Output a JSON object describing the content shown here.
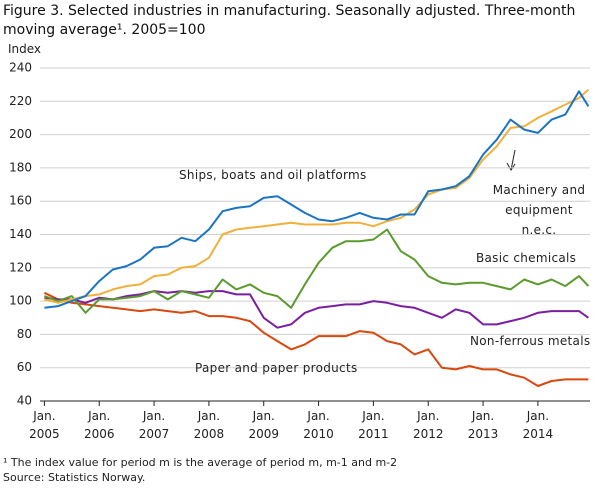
{
  "chart_data": {
    "type": "line",
    "title": "Figure 3. Selected industries in manufacturing. Seasonally adjusted. Three-month moving average¹. 2005=100",
    "y_label": "Index",
    "footnote": "¹ The index value for period m is the average of period m, m-1 and m-2",
    "source": "Source: Statistics Norway.",
    "x": [
      2005,
      2005.25,
      2005.5,
      2005.75,
      2006,
      2006.25,
      2006.5,
      2006.75,
      2007,
      2007.25,
      2007.5,
      2007.75,
      2008,
      2008.25,
      2008.5,
      2008.75,
      2009,
      2009.25,
      2009.5,
      2009.75,
      2010,
      2010.25,
      2010.5,
      2010.75,
      2011,
      2011.25,
      2011.5,
      2011.75,
      2012,
      2012.25,
      2012.5,
      2012.75,
      2013,
      2013.25,
      2013.5,
      2013.75,
      2014,
      2014.25,
      2014.5,
      2014.75,
      2014.92
    ],
    "xlim": [
      2004.92,
      2014.95
    ],
    "xticks": [
      {
        "value": 2005,
        "label": "Jan. 2005"
      },
      {
        "value": 2006,
        "label": "Jan. 2006"
      },
      {
        "value": 2007,
        "label": "Jan. 2007"
      },
      {
        "value": 2008,
        "label": "Jan. 2008"
      },
      {
        "value": 2009,
        "label": "Jan. 2009"
      },
      {
        "value": 2010,
        "label": "Jan. 2010"
      },
      {
        "value": 2011,
        "label": "Jan. 2011"
      },
      {
        "value": 2012,
        "label": "Jan. 2012"
      },
      {
        "value": 2013,
        "label": "Jan. 2013"
      },
      {
        "value": 2014,
        "label": "Jan. 2014"
      }
    ],
    "ylim": [
      40,
      240
    ],
    "yticks": [
      40,
      60,
      80,
      100,
      120,
      140,
      160,
      180,
      200,
      220,
      240
    ],
    "grid": true,
    "series": [
      {
        "name": "Ships, boats and oil platforms",
        "color": "#1a74c4",
        "values": [
          96,
          97,
          100,
          103,
          112,
          119,
          121,
          125,
          132,
          133,
          138,
          136,
          143,
          154,
          156,
          157,
          162,
          163,
          158,
          153,
          149,
          148,
          150,
          153,
          150,
          149,
          152,
          152,
          166,
          167,
          169,
          175,
          188,
          197,
          209,
          203,
          201,
          209,
          212,
          226,
          217
        ]
      },
      {
        "name": "Machinery and equipment n.e.c.",
        "color": "#f0b03c",
        "values": [
          101,
          99,
          101,
          103,
          104,
          107,
          109,
          110,
          115,
          116,
          120,
          121,
          126,
          140,
          143,
          144,
          145,
          146,
          147,
          146,
          146,
          146,
          147,
          147,
          145,
          148,
          150,
          155,
          164,
          167,
          168,
          174,
          185,
          193,
          204,
          205,
          210,
          214,
          218,
          222,
          227
        ]
      },
      {
        "name": "Basic chemicals",
        "color": "#5b9a2c",
        "values": [
          103,
          100,
          103,
          93,
          101,
          101,
          102,
          103,
          106,
          101,
          106,
          104,
          102,
          113,
          107,
          110,
          105,
          103,
          96,
          110,
          123,
          132,
          136,
          136,
          137,
          143,
          130,
          125,
          115,
          111,
          110,
          111,
          111,
          109,
          107,
          113,
          110,
          113,
          109,
          115,
          109
        ]
      },
      {
        "name": "Non-ferrous metals",
        "color": "#7b1fa2",
        "values": [
          102,
          101,
          101,
          99,
          102,
          101,
          103,
          104,
          106,
          105,
          106,
          105,
          106,
          106,
          104,
          104,
          90,
          84,
          86,
          93,
          96,
          97,
          98,
          98,
          100,
          99,
          97,
          96,
          93,
          90,
          95,
          93,
          86,
          86,
          88,
          90,
          93,
          94,
          94,
          94,
          90
        ]
      },
      {
        "name": "Paper and paper products",
        "color": "#d9480f",
        "values": [
          105,
          101,
          99,
          98,
          97,
          96,
          95,
          94,
          95,
          94,
          93,
          94,
          91,
          91,
          90,
          88,
          81,
          76,
          71,
          74,
          79,
          79,
          79,
          82,
          81,
          76,
          74,
          68,
          71,
          60,
          59,
          61,
          59,
          59,
          56,
          54,
          49,
          52,
          53,
          53,
          53
        ]
      }
    ]
  }
}
